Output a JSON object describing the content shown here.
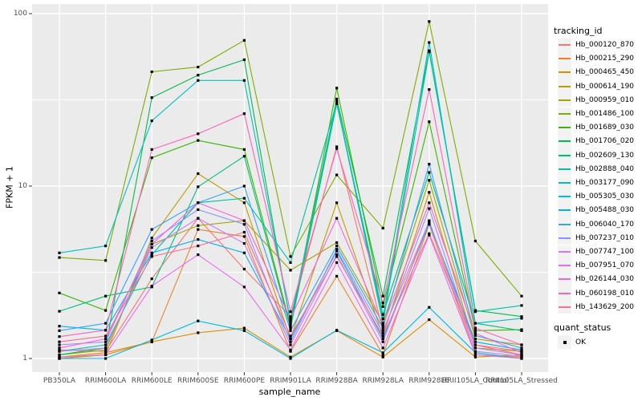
{
  "chart_data": {
    "type": "line",
    "title": "",
    "xlabel": "sample_name",
    "ylabel": "FPKM + 1",
    "y_scale": "log10",
    "y_ticks": [
      100,
      10,
      1
    ],
    "y_tick_labels": [
      "100",
      "10",
      "1"
    ],
    "ylim": [
      0.84,
      114
    ],
    "grid": "on",
    "panel_bg": "#EBEBEB",
    "grid_color": "#FFFFFF",
    "point_marker": "filled-black-square",
    "legend_position": "right",
    "legend_title": "tracking_id",
    "quant_legend": {
      "title": "quant_status",
      "items": [
        "OK"
      ]
    },
    "categories": [
      "PB350LA",
      "RRIM600LA",
      "RRIM600LE",
      "RRIM600SE",
      "RRIM600PE",
      "RRIM901LA",
      "RRIM928BA",
      "RRIM928LA",
      "RRIM928LE",
      "RRII105LA_Control",
      "RRII105LA_Stressed"
    ],
    "series": [
      {
        "name": "Hb_000120_870",
        "color": "#F8766D",
        "values": [
          1.12,
          1.1,
          2.9,
          6.5,
          3.3,
          1.75,
          16.9,
          1.45,
          6.2,
          1.2,
          1.1
        ]
      },
      {
        "name": "Hb_000215_290",
        "color": "#EA8331",
        "values": [
          1.0,
          1.05,
          1.25,
          5.6,
          5.1,
          1.1,
          3.0,
          1.05,
          6.0,
          1.05,
          1.02
        ]
      },
      {
        "name": "Hb_000465_450",
        "color": "#D89000",
        "values": [
          1.02,
          1.08,
          1.25,
          1.41,
          1.5,
          1.02,
          1.45,
          1.02,
          1.68,
          1.02,
          1.05
        ]
      },
      {
        "name": "Hb_000614_190",
        "color": "#C09B00",
        "values": [
          1.0,
          1.05,
          5.0,
          11.8,
          8.0,
          1.3,
          8.0,
          1.35,
          9.2,
          1.15,
          1.1
        ]
      },
      {
        "name": "Hb_000959_010",
        "color": "#A3A500",
        "values": [
          1.05,
          1.12,
          4.6,
          5.9,
          6.3,
          3.25,
          4.7,
          1.6,
          10.8,
          1.3,
          1.2
        ]
      },
      {
        "name": "Hb_001486_100",
        "color": "#7CAE00",
        "values": [
          3.85,
          3.7,
          46.0,
          49.0,
          70.0,
          3.9,
          11.6,
          5.7,
          90.0,
          4.8,
          2.3
        ]
      },
      {
        "name": "Hb_001689_030",
        "color": "#39B600",
        "values": [
          2.4,
          1.9,
          14.6,
          18.4,
          16.3,
          1.55,
          37.0,
          2.0,
          23.6,
          1.45,
          1.47
        ]
      },
      {
        "name": "Hb_001706_020",
        "color": "#00BB4E",
        "values": [
          1.05,
          1.15,
          32.6,
          44.0,
          54.0,
          1.6,
          32.0,
          2.3,
          61.0,
          1.9,
          1.75
        ]
      },
      {
        "name": "Hb_002609_130",
        "color": "#00BF7D",
        "values": [
          1.88,
          2.3,
          2.6,
          9.9,
          14.9,
          1.5,
          30.0,
          1.8,
          12.0,
          1.6,
          1.45
        ]
      },
      {
        "name": "Hb_002888_040",
        "color": "#00C1A3",
        "values": [
          1.1,
          1.2,
          4.0,
          8.0,
          8.5,
          3.6,
          30.5,
          1.6,
          60.0,
          1.87,
          2.03
        ]
      },
      {
        "name": "Hb_003177_090",
        "color": "#00BFC4",
        "values": [
          4.1,
          4.5,
          23.9,
          41.0,
          41.0,
          1.65,
          31.0,
          1.7,
          68.0,
          1.6,
          1.71
        ]
      },
      {
        "name": "Hb_005305_030",
        "color": "#00BAE0",
        "values": [
          1.0,
          1.0,
          1.28,
          1.65,
          1.45,
          1.0,
          1.46,
          1.08,
          1.98,
          1.08,
          1.0
        ]
      },
      {
        "name": "Hb_005488_030",
        "color": "#00B0F6",
        "values": [
          1.54,
          1.46,
          4.1,
          4.9,
          4.1,
          1.3,
          4.2,
          1.3,
          6.1,
          1.25,
          1.12
        ]
      },
      {
        "name": "Hb_006040_170",
        "color": "#35A2FF",
        "values": [
          1.45,
          1.6,
          5.6,
          8.0,
          10.0,
          1.45,
          4.5,
          1.5,
          13.4,
          1.36,
          1.15
        ]
      },
      {
        "name": "Hb_007237_010",
        "color": "#9590FF",
        "values": [
          1.2,
          1.25,
          4.8,
          7.3,
          6.0,
          1.25,
          4.3,
          1.4,
          7.4,
          1.15,
          1.05
        ]
      },
      {
        "name": "Hb_007747_100",
        "color": "#C77CFF",
        "values": [
          1.1,
          1.15,
          4.4,
          6.5,
          4.65,
          1.2,
          4.0,
          1.25,
          6.3,
          1.1,
          1.03
        ]
      },
      {
        "name": "Hb_007951_070",
        "color": "#E76BF3",
        "values": [
          1.02,
          1.05,
          2.63,
          4.0,
          2.6,
          1.12,
          3.6,
          1.15,
          5.2,
          1.05,
          1.0
        ]
      },
      {
        "name": "Hb_026144_030",
        "color": "#FA62DB",
        "values": [
          1.15,
          1.3,
          4.6,
          8.0,
          6.3,
          1.7,
          6.5,
          1.55,
          8.0,
          1.4,
          1.08
        ]
      },
      {
        "name": "Hb_060198_010",
        "color": "#FF62BC",
        "values": [
          1.34,
          1.46,
          16.3,
          20.1,
          26.3,
          1.87,
          16.5,
          2.1,
          36.3,
          1.5,
          1.2
        ]
      },
      {
        "name": "Hb_143629_200",
        "color": "#FF6A98",
        "values": [
          1.25,
          1.35,
          3.9,
          4.5,
          5.4,
          1.35,
          3.9,
          1.35,
          5.3,
          1.2,
          1.05
        ]
      }
    ]
  }
}
